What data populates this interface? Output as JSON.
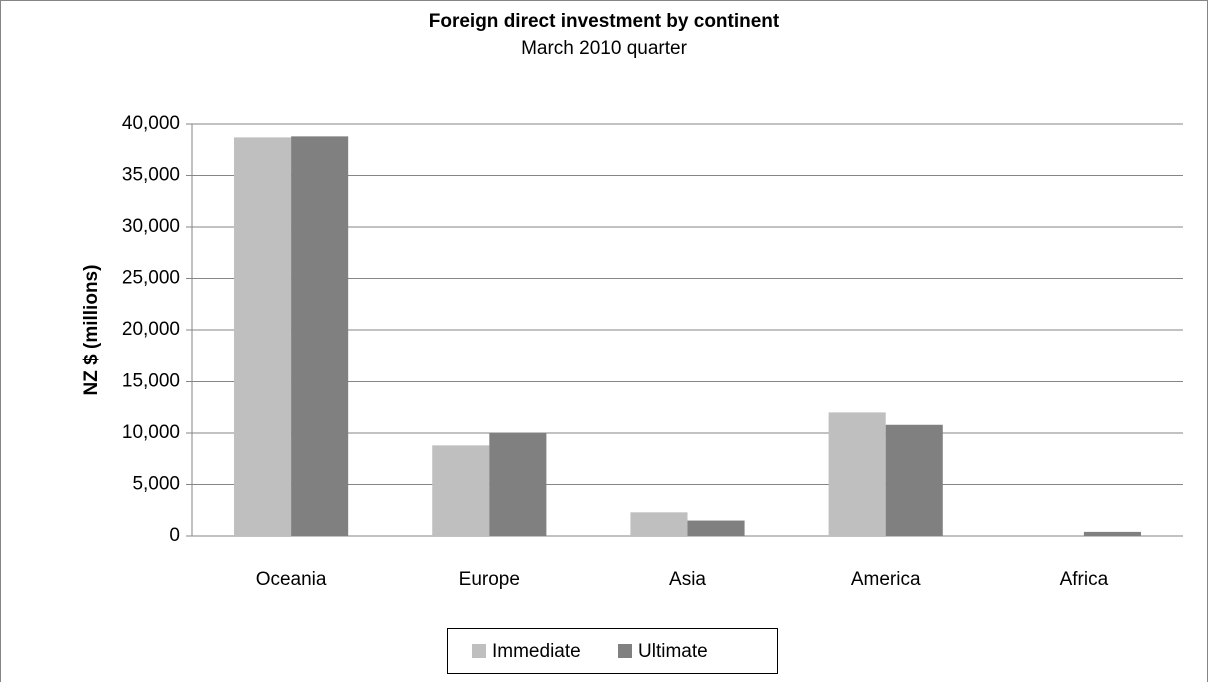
{
  "chart_data": {
    "type": "bar",
    "title": "Foreign direct investment by continent",
    "subtitle": "March 2010 quarter",
    "y_label": "NZ $ (millions)",
    "categories": [
      "Oceania",
      "Europe",
      "Asia",
      "America",
      "Africa"
    ],
    "series": [
      {
        "name": "Immediate",
        "color": "#bfbfbf",
        "values": [
          38700,
          8800,
          2300,
          12000,
          0
        ]
      },
      {
        "name": "Ultimate",
        "color": "#808080",
        "values": [
          38800,
          10000,
          1500,
          10800,
          400
        ]
      }
    ],
    "ylim": [
      0,
      40000
    ],
    "yticks": [
      0,
      {
        "value": 5000,
        "label": "5,000"
      },
      {
        "value": 10000,
        "label": "10,000"
      },
      {
        "value": 15000,
        "label": "15,000"
      },
      {
        "value": 20000,
        "label": "20,000"
      },
      {
        "value": 25000,
        "label": "25,000"
      },
      {
        "value": 30000,
        "label": "30,000"
      },
      {
        "value": 35000,
        "label": "35,000"
      },
      {
        "value": 40000,
        "label": "40,000"
      }
    ],
    "grid": true,
    "legend": "bottom"
  }
}
